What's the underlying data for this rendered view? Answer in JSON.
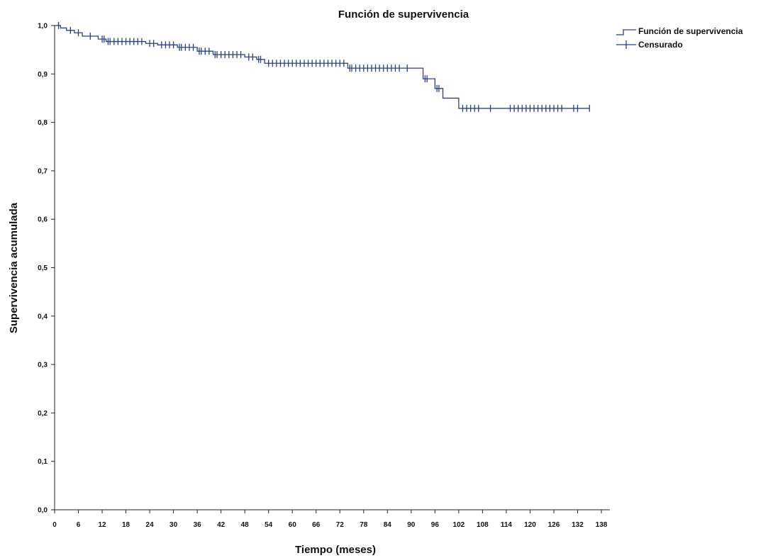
{
  "chart_data": {
    "type": "line",
    "title": "Función de supervivencia",
    "xlabel": "Tiempo (meses)",
    "ylabel": "Supervivencia acumulada",
    "xlim": [
      0,
      138
    ],
    "ylim": [
      0,
      1.0
    ],
    "x_ticks": [
      "0",
      "6",
      "12",
      "18",
      "24",
      "30",
      "36",
      "42",
      "48",
      "54",
      "60",
      "66",
      "72",
      "78",
      "84",
      "90",
      "96",
      "102",
      "108",
      "114",
      "120",
      "126",
      "132",
      "138"
    ],
    "y_ticks": [
      "0,0",
      "0,1",
      "0,2",
      "0,3",
      "0,4",
      "0,5",
      "0,6",
      "0,7",
      "0,8",
      "0,9",
      "1,0"
    ],
    "legend": {
      "position": "top-right",
      "entries": [
        "Función de supervivencia",
        "Censurado"
      ]
    },
    "colors": {
      "series": "#2b3f8c"
    },
    "series": [
      {
        "name": "Función de supervivencia",
        "kind": "step",
        "x": [
          0,
          1.5,
          3,
          5,
          7,
          11,
          13,
          23,
          26,
          31,
          36,
          40,
          48,
          51,
          53,
          74,
          93,
          96,
          98,
          102,
          135
        ],
        "y": [
          1.0,
          0.995,
          0.99,
          0.985,
          0.978,
          0.972,
          0.967,
          0.963,
          0.96,
          0.955,
          0.947,
          0.94,
          0.935,
          0.93,
          0.922,
          0.912,
          0.89,
          0.87,
          0.85,
          0.829,
          0.829
        ]
      },
      {
        "name": "Censurado",
        "kind": "censored",
        "x": [
          1,
          4,
          6,
          9,
          12,
          12.5,
          13.5,
          14,
          15,
          16,
          17,
          18,
          19,
          20,
          21,
          22,
          24,
          25,
          27,
          28,
          29,
          30,
          31.5,
          32,
          33,
          34,
          35,
          36.5,
          37,
          38,
          39,
          40.5,
          41,
          42,
          43,
          44,
          45,
          46,
          47,
          49,
          50,
          51.5,
          52,
          54,
          55,
          56,
          57,
          58,
          59,
          60,
          61,
          62,
          63,
          64,
          65,
          66,
          67,
          68,
          69,
          70,
          71,
          72,
          73,
          74.5,
          75,
          76,
          77,
          78,
          79,
          80,
          81,
          82,
          83,
          84,
          85,
          86,
          87,
          89,
          93.5,
          94,
          96.5,
          97,
          103,
          104,
          105,
          106,
          107,
          110,
          115,
          116,
          117,
          118,
          119,
          120,
          121,
          122,
          123,
          124,
          125,
          126,
          127,
          128,
          131,
          132,
          135
        ]
      }
    ]
  }
}
